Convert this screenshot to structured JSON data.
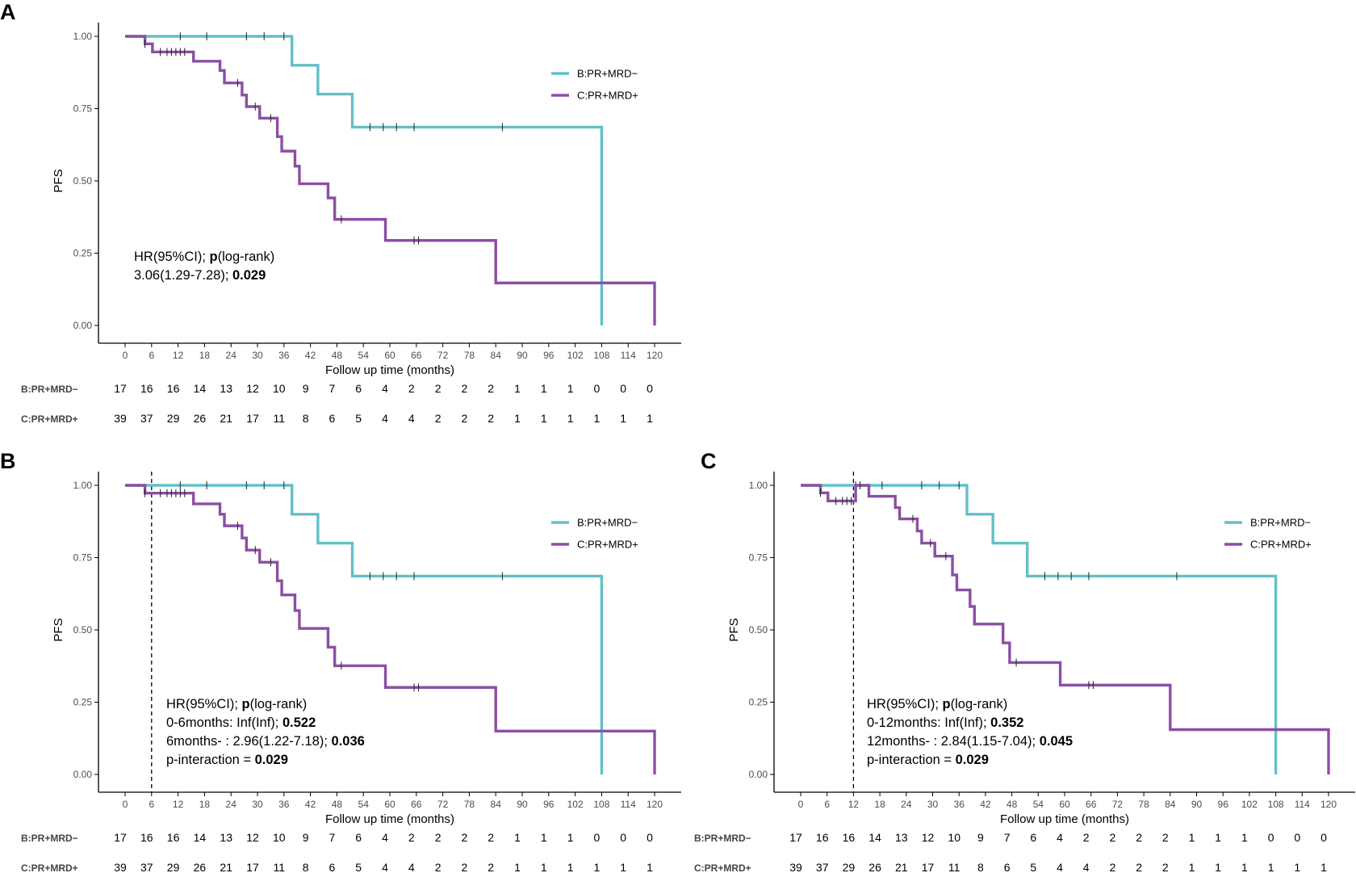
{
  "colors": {
    "B": "#63BFC8",
    "C": "#8B4FA3",
    "axis": "#000000",
    "tick_text": "#4D4D4D",
    "text": "#000000"
  },
  "chart_data": [
    {
      "panel": "A",
      "type": "line",
      "step": "post",
      "title": "",
      "xlabel": "Follow up time (months)",
      "ylabel": "PFS",
      "xlim": [
        0,
        120
      ],
      "ylim": [
        0,
        1
      ],
      "xticks": [
        0,
        6,
        12,
        18,
        24,
        30,
        36,
        42,
        48,
        54,
        60,
        66,
        72,
        78,
        84,
        90,
        96,
        102,
        108,
        114,
        120
      ],
      "yticks": [
        0.0,
        0.25,
        0.5,
        0.75,
        1.0
      ],
      "ytick_labels": [
        "0.00",
        "0.25",
        "0.50",
        "0.75",
        "1.00"
      ],
      "cutoff": null,
      "legend": [
        "B:PR+MRD−",
        "C:PR+MRD+"
      ],
      "legend_position": "upper-right",
      "series": [
        {
          "name": "B:PR+MRD−",
          "color_key": "B",
          "steps": [
            [
              0,
              1.0
            ],
            [
              37.8,
              0.9
            ],
            [
              43.7,
              0.8
            ],
            [
              51.5,
              0.686
            ],
            [
              108,
              0.0
            ]
          ],
          "end_x": 108,
          "censored": [
            [
              12.5,
              1.0
            ],
            [
              18.5,
              1.0
            ],
            [
              27.5,
              1.0
            ],
            [
              31.5,
              1.0
            ],
            [
              36,
              1.0
            ],
            [
              55.5,
              0.686
            ],
            [
              58.5,
              0.686
            ],
            [
              61.5,
              0.686
            ],
            [
              65.5,
              0.686
            ],
            [
              85.5,
              0.686
            ]
          ]
        },
        {
          "name": "C:PR+MRD+",
          "color_key": "C",
          "steps": [
            [
              0,
              1.0
            ],
            [
              4.5,
              0.974
            ],
            [
              6.2,
              0.946
            ],
            [
              15.5,
              0.914
            ],
            [
              21.5,
              0.882
            ],
            [
              22.5,
              0.839
            ],
            [
              26.5,
              0.797
            ],
            [
              27.5,
              0.757
            ],
            [
              30.5,
              0.717
            ],
            [
              34.5,
              0.653
            ],
            [
              35.5,
              0.603
            ],
            [
              38.5,
              0.551
            ],
            [
              39.5,
              0.49
            ],
            [
              46,
              0.441
            ],
            [
              47.5,
              0.367
            ],
            [
              59,
              0.294
            ],
            [
              84,
              0.147
            ],
            [
              120,
              0.0
            ]
          ],
          "end_x": 120,
          "censored": [
            [
              4.5,
              0.974
            ],
            [
              8,
              0.946
            ],
            [
              9.5,
              0.946
            ],
            [
              10.5,
              0.946
            ],
            [
              11.5,
              0.946
            ],
            [
              12.5,
              0.946
            ],
            [
              13.5,
              0.946
            ],
            [
              25.5,
              0.839
            ],
            [
              29.5,
              0.757
            ],
            [
              33,
              0.717
            ],
            [
              49,
              0.367
            ],
            [
              65.5,
              0.294
            ],
            [
              66.5,
              0.294
            ]
          ]
        }
      ],
      "risk_table": {
        "times": [
          0,
          6,
          12,
          18,
          24,
          30,
          36,
          42,
          48,
          54,
          60,
          66,
          72,
          78,
          84,
          90,
          96,
          102,
          108,
          114,
          120
        ],
        "rows": [
          {
            "label": "B:PR+MRD−",
            "counts": [
              17,
              16,
              16,
              14,
              13,
              12,
              10,
              9,
              7,
              6,
              4,
              2,
              2,
              2,
              2,
              1,
              1,
              1,
              0,
              0,
              0
            ]
          },
          {
            "label": "C:PR+MRD+",
            "counts": [
              39,
              37,
              29,
              26,
              21,
              17,
              11,
              8,
              6,
              5,
              4,
              4,
              2,
              2,
              2,
              1,
              1,
              1,
              1,
              1,
              1
            ]
          }
        ]
      },
      "annotation": [
        [
          {
            "t": "HR(95%CI); ",
            "b": false
          },
          {
            "t": "p",
            "b": true
          },
          {
            "t": "(log-rank)",
            "b": false
          }
        ],
        [
          {
            "t": "3.06(1.29-7.28); ",
            "b": false
          },
          {
            "t": "0.029",
            "b": true
          }
        ]
      ]
    },
    {
      "panel": "B",
      "type": "line",
      "step": "post",
      "title": "",
      "xlabel": "Follow up time (months)",
      "ylabel": "PFS",
      "xlim": [
        0,
        120
      ],
      "ylim": [
        0,
        1
      ],
      "xticks": [
        0,
        6,
        12,
        18,
        24,
        30,
        36,
        42,
        48,
        54,
        60,
        66,
        72,
        78,
        84,
        90,
        96,
        102,
        108,
        114,
        120
      ],
      "yticks": [
        0.0,
        0.25,
        0.5,
        0.75,
        1.0
      ],
      "ytick_labels": [
        "0.00",
        "0.25",
        "0.50",
        "0.75",
        "1.00"
      ],
      "cutoff": 6,
      "legend": [
        "B:PR+MRD−",
        "C:PR+MRD+"
      ],
      "legend_position": "upper-right",
      "series": [
        {
          "name": "B:PR+MRD−",
          "color_key": "B",
          "steps": [
            [
              0,
              1.0
            ],
            [
              37.8,
              0.9
            ],
            [
              43.7,
              0.8
            ],
            [
              51.5,
              0.686
            ],
            [
              108,
              0.0
            ]
          ],
          "end_x": 108,
          "censored": [
            [
              12.5,
              1.0
            ],
            [
              18.5,
              1.0
            ],
            [
              27.5,
              1.0
            ],
            [
              31.5,
              1.0
            ],
            [
              36,
              1.0
            ],
            [
              55.5,
              0.686
            ],
            [
              58.5,
              0.686
            ],
            [
              61.5,
              0.686
            ],
            [
              65.5,
              0.686
            ],
            [
              85.5,
              0.686
            ]
          ]
        },
        {
          "name": "C:PR+MRD+",
          "color_key": "C",
          "steps": [
            [
              0,
              1.0
            ],
            [
              4.5,
              0.973
            ],
            [
              15.5,
              0.936
            ],
            [
              21.5,
              0.9
            ],
            [
              22.5,
              0.86
            ],
            [
              26.5,
              0.818
            ],
            [
              27.5,
              0.776
            ],
            [
              30.5,
              0.734
            ],
            [
              34.5,
              0.67
            ],
            [
              35.5,
              0.621
            ],
            [
              38.5,
              0.567
            ],
            [
              39.5,
              0.505
            ],
            [
              46,
              0.44
            ],
            [
              47.5,
              0.376
            ],
            [
              59,
              0.301
            ],
            [
              84,
              0.15
            ],
            [
              120,
              0.0
            ]
          ],
          "end_x": 120,
          "censored": [
            [
              4.5,
              0.973
            ],
            [
              8,
              0.973
            ],
            [
              9.5,
              0.973
            ],
            [
              10.5,
              0.973
            ],
            [
              11.5,
              0.973
            ],
            [
              12.5,
              0.973
            ],
            [
              13.5,
              0.973
            ],
            [
              25.5,
              0.86
            ],
            [
              29.5,
              0.776
            ],
            [
              33,
              0.734
            ],
            [
              49,
              0.376
            ],
            [
              65.5,
              0.301
            ],
            [
              66.5,
              0.301
            ]
          ]
        }
      ],
      "risk_table": {
        "times": [
          0,
          6,
          12,
          18,
          24,
          30,
          36,
          42,
          48,
          54,
          60,
          66,
          72,
          78,
          84,
          90,
          96,
          102,
          108,
          114,
          120
        ],
        "rows": [
          {
            "label": "B:PR+MRD−",
            "counts": [
              17,
              16,
              16,
              14,
              13,
              12,
              10,
              9,
              7,
              6,
              4,
              2,
              2,
              2,
              2,
              1,
              1,
              1,
              0,
              0,
              0
            ]
          },
          {
            "label": "C:PR+MRD+",
            "counts": [
              39,
              37,
              29,
              26,
              21,
              17,
              11,
              8,
              6,
              5,
              4,
              4,
              2,
              2,
              2,
              1,
              1,
              1,
              1,
              1,
              1
            ]
          }
        ]
      },
      "annotation": [
        [
          {
            "t": "HR(95%CI); ",
            "b": false
          },
          {
            "t": "p",
            "b": true
          },
          {
            "t": "(log-rank)",
            "b": false
          }
        ],
        [
          {
            "t": "0-6months: Inf(Inf); ",
            "b": false
          },
          {
            "t": "0.522",
            "b": true
          }
        ],
        [
          {
            "t": "6months- : 2.96(1.22-7.18); ",
            "b": false
          },
          {
            "t": "0.036",
            "b": true
          }
        ],
        [
          {
            "t": "p-interaction = ",
            "b": false
          },
          {
            "t": "0.029",
            "b": true
          }
        ]
      ]
    },
    {
      "panel": "C",
      "type": "line",
      "step": "post",
      "title": "",
      "xlabel": "Follow up time (months)",
      "ylabel": "PFS",
      "xlim": [
        0,
        120
      ],
      "ylim": [
        0,
        1
      ],
      "xticks": [
        0,
        6,
        12,
        18,
        24,
        30,
        36,
        42,
        48,
        54,
        60,
        66,
        72,
        78,
        84,
        90,
        96,
        102,
        108,
        114,
        120
      ],
      "yticks": [
        0.0,
        0.25,
        0.5,
        0.75,
        1.0
      ],
      "ytick_labels": [
        "0.00",
        "0.25",
        "0.50",
        "0.75",
        "1.00"
      ],
      "cutoff": 12,
      "legend": [
        "B:PR+MRD−",
        "C:PR+MRD+"
      ],
      "legend_position": "upper-right",
      "series": [
        {
          "name": "B:PR+MRD−",
          "color_key": "B",
          "steps": [
            [
              0,
              1.0
            ],
            [
              37.8,
              0.9
            ],
            [
              43.7,
              0.8
            ],
            [
              51.5,
              0.686
            ],
            [
              108,
              0.0
            ]
          ],
          "end_x": 108,
          "censored": [
            [
              12.5,
              1.0
            ],
            [
              18.5,
              1.0
            ],
            [
              27.5,
              1.0
            ],
            [
              31.5,
              1.0
            ],
            [
              36,
              1.0
            ],
            [
              55.5,
              0.686
            ],
            [
              58.5,
              0.686
            ],
            [
              61.5,
              0.686
            ],
            [
              65.5,
              0.686
            ],
            [
              85.5,
              0.686
            ]
          ]
        },
        {
          "name": "C:PR+MRD+",
          "color_key": "C",
          "steps": [
            [
              0,
              1.0
            ],
            [
              4.5,
              0.974
            ],
            [
              6.2,
              0.946
            ],
            [
              12.5,
              1.0
            ],
            [
              15.5,
              0.962
            ],
            [
              21.5,
              0.923
            ],
            [
              22.5,
              0.884
            ],
            [
              26.5,
              0.842
            ],
            [
              27.5,
              0.8
            ],
            [
              30.5,
              0.755
            ],
            [
              34.5,
              0.69
            ],
            [
              35.5,
              0.638
            ],
            [
              38.5,
              0.581
            ],
            [
              39.5,
              0.52
            ],
            [
              46,
              0.455
            ],
            [
              47.5,
              0.387
            ],
            [
              59,
              0.309
            ],
            [
              84,
              0.155
            ],
            [
              120,
              0.0
            ]
          ],
          "end_x": 120,
          "censored": [
            [
              4.5,
              0.974
            ],
            [
              8,
              0.946
            ],
            [
              9.5,
              0.946
            ],
            [
              10.5,
              0.946
            ],
            [
              11.5,
              0.946
            ],
            [
              13.5,
              1.0
            ],
            [
              25.5,
              0.884
            ],
            [
              29.5,
              0.8
            ],
            [
              33,
              0.755
            ],
            [
              49,
              0.387
            ],
            [
              65.5,
              0.309
            ],
            [
              66.5,
              0.309
            ]
          ]
        }
      ],
      "risk_table": {
        "times": [
          0,
          6,
          12,
          18,
          24,
          30,
          36,
          42,
          48,
          54,
          60,
          66,
          72,
          78,
          84,
          90,
          96,
          102,
          108,
          114,
          120
        ],
        "rows": [
          {
            "label": "B:PR+MRD−",
            "counts": [
              17,
              16,
              16,
              14,
              13,
              12,
              10,
              9,
              7,
              6,
              4,
              2,
              2,
              2,
              2,
              1,
              1,
              1,
              0,
              0,
              0
            ]
          },
          {
            "label": "C:PR+MRD+",
            "counts": [
              39,
              37,
              29,
              26,
              21,
              17,
              11,
              8,
              6,
              5,
              4,
              4,
              2,
              2,
              2,
              1,
              1,
              1,
              1,
              1,
              1
            ]
          }
        ]
      },
      "annotation": [
        [
          {
            "t": "HR(95%CI); ",
            "b": false
          },
          {
            "t": "p",
            "b": true
          },
          {
            "t": "(log-rank)",
            "b": false
          }
        ],
        [
          {
            "t": "0-12months: Inf(Inf); ",
            "b": false
          },
          {
            "t": "0.352",
            "b": true
          }
        ],
        [
          {
            "t": "12months- : 2.84(1.15-7.04); ",
            "b": false
          },
          {
            "t": "0.045",
            "b": true
          }
        ],
        [
          {
            "t": "p-interaction = ",
            "b": false
          },
          {
            "t": "0.029",
            "b": true
          }
        ]
      ]
    }
  ]
}
